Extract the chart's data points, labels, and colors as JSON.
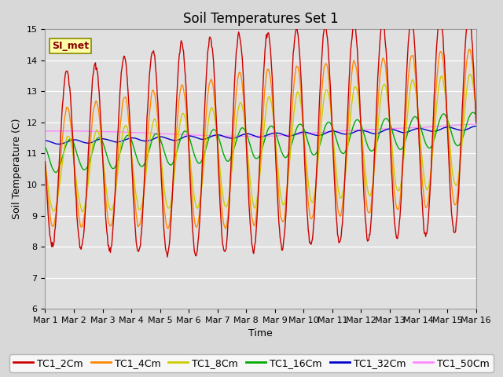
{
  "title": "Soil Temperatures Set 1",
  "xlabel": "Time",
  "ylabel": "Soil Temperature (C)",
  "ylim": [
    6.0,
    15.0
  ],
  "yticks": [
    6.0,
    7.0,
    8.0,
    9.0,
    10.0,
    11.0,
    12.0,
    13.0,
    14.0,
    15.0
  ],
  "fig_bg_color": "#d8d8d8",
  "plot_bg_color": "#e0e0e0",
  "series_colors": {
    "TC1_2Cm": "#cc0000",
    "TC1_4Cm": "#ff8800",
    "TC1_8Cm": "#cccc00",
    "TC1_16Cm": "#00aa00",
    "TC1_32Cm": "#0000cc",
    "TC1_50Cm": "#ff88ff"
  },
  "legend_label": "SI_met",
  "legend_box_facecolor": "#ffffaa",
  "legend_box_edgecolor": "#888800",
  "n_points": 720,
  "x_start": 0,
  "x_end": 15,
  "xtick_positions": [
    0,
    1,
    2,
    3,
    4,
    5,
    6,
    7,
    8,
    9,
    10,
    11,
    12,
    13,
    14,
    15
  ],
  "xtick_labels": [
    "Mar 1",
    "Mar 2",
    "Mar 3",
    "Mar 4",
    "Mar 5",
    "Mar 6",
    "Mar 7",
    "Mar 8",
    "Mar 9",
    "Mar 10",
    "Mar 11",
    "Mar 12",
    "Mar 13",
    "Mar 14",
    "Mar 15",
    "Mar 16"
  ],
  "title_fontsize": 12,
  "axis_label_fontsize": 9,
  "tick_fontsize": 8,
  "legend_fontsize": 9,
  "line_width": 1.0
}
